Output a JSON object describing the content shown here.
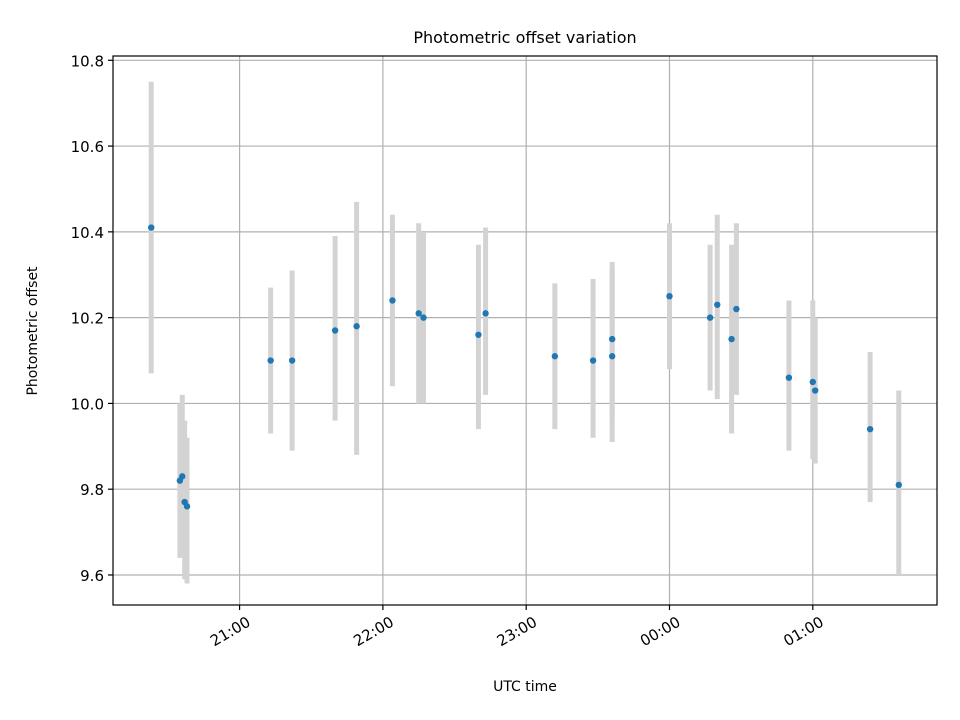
{
  "chart_data": {
    "type": "scatter",
    "title": "Photometric offset variation",
    "xlabel": "UTC time",
    "ylabel": "Photometric offset",
    "x_axis_type": "time",
    "xlim": [
      "20:07",
      "01:52"
    ],
    "ylim": [
      9.53,
      10.81
    ],
    "x_ticks": [
      "21:00",
      "22:00",
      "23:00",
      "00:00",
      "01:00"
    ],
    "y_ticks": [
      "9.6",
      "9.8",
      "10.0",
      "10.2",
      "10.4",
      "10.6",
      "10.8"
    ],
    "y_tick_values": [
      9.6,
      9.8,
      10.0,
      10.2,
      10.4,
      10.6,
      10.8
    ],
    "grid": true,
    "colors": {
      "point": "#1f77b4",
      "errorbar": "#d3d3d3",
      "grid": "#b0b0b0"
    },
    "series": [
      {
        "points": [
          {
            "x": "20:23",
            "y": 10.41,
            "y_low": 10.07,
            "y_high": 10.75
          },
          {
            "x": "20:35",
            "y": 9.82,
            "y_low": 9.64,
            "y_high": 10.0
          },
          {
            "x": "20:36",
            "y": 9.83,
            "y_low": 9.65,
            "y_high": 10.02
          },
          {
            "x": "20:37",
            "y": 9.77,
            "y_low": 9.59,
            "y_high": 9.96
          },
          {
            "x": "20:38",
            "y": 9.76,
            "y_low": 9.58,
            "y_high": 9.92
          },
          {
            "x": "21:13",
            "y": 10.1,
            "y_low": 9.93,
            "y_high": 10.27
          },
          {
            "x": "21:22",
            "y": 10.1,
            "y_low": 9.89,
            "y_high": 10.31
          },
          {
            "x": "21:40",
            "y": 10.17,
            "y_low": 9.96,
            "y_high": 10.39
          },
          {
            "x": "21:49",
            "y": 10.18,
            "y_low": 9.88,
            "y_high": 10.47
          },
          {
            "x": "22:04",
            "y": 10.24,
            "y_low": 10.04,
            "y_high": 10.44
          },
          {
            "x": "22:15",
            "y": 10.21,
            "y_low": 10.0,
            "y_high": 10.42
          },
          {
            "x": "22:17",
            "y": 10.2,
            "y_low": 10.0,
            "y_high": 10.4
          },
          {
            "x": "22:40",
            "y": 10.16,
            "y_low": 9.94,
            "y_high": 10.37
          },
          {
            "x": "22:43",
            "y": 10.21,
            "y_low": 10.02,
            "y_high": 10.41
          },
          {
            "x": "23:12",
            "y": 10.11,
            "y_low": 9.94,
            "y_high": 10.28
          },
          {
            "x": "23:28",
            "y": 10.1,
            "y_low": 9.92,
            "y_high": 10.29
          },
          {
            "x": "23:36",
            "y": 10.15,
            "y_low": 9.97,
            "y_high": 10.33
          },
          {
            "x": "23:36",
            "y": 10.11,
            "y_low": 9.91,
            "y_high": 10.32
          },
          {
            "x": "00:00",
            "y": 10.25,
            "y_low": 10.08,
            "y_high": 10.42
          },
          {
            "x": "00:17",
            "y": 10.2,
            "y_low": 10.03,
            "y_high": 10.37
          },
          {
            "x": "00:20",
            "y": 10.23,
            "y_low": 10.01,
            "y_high": 10.44
          },
          {
            "x": "00:26",
            "y": 10.15,
            "y_low": 9.93,
            "y_high": 10.37
          },
          {
            "x": "00:28",
            "y": 10.22,
            "y_low": 10.02,
            "y_high": 10.42
          },
          {
            "x": "00:50",
            "y": 10.06,
            "y_low": 9.89,
            "y_high": 10.24
          },
          {
            "x": "01:00",
            "y": 10.05,
            "y_low": 9.87,
            "y_high": 10.24
          },
          {
            "x": "01:01",
            "y": 10.03,
            "y_low": 9.86,
            "y_high": 10.2
          },
          {
            "x": "01:24",
            "y": 9.94,
            "y_low": 9.77,
            "y_high": 10.12
          },
          {
            "x": "01:36",
            "y": 9.81,
            "y_low": 9.6,
            "y_high": 10.03
          }
        ]
      }
    ]
  }
}
